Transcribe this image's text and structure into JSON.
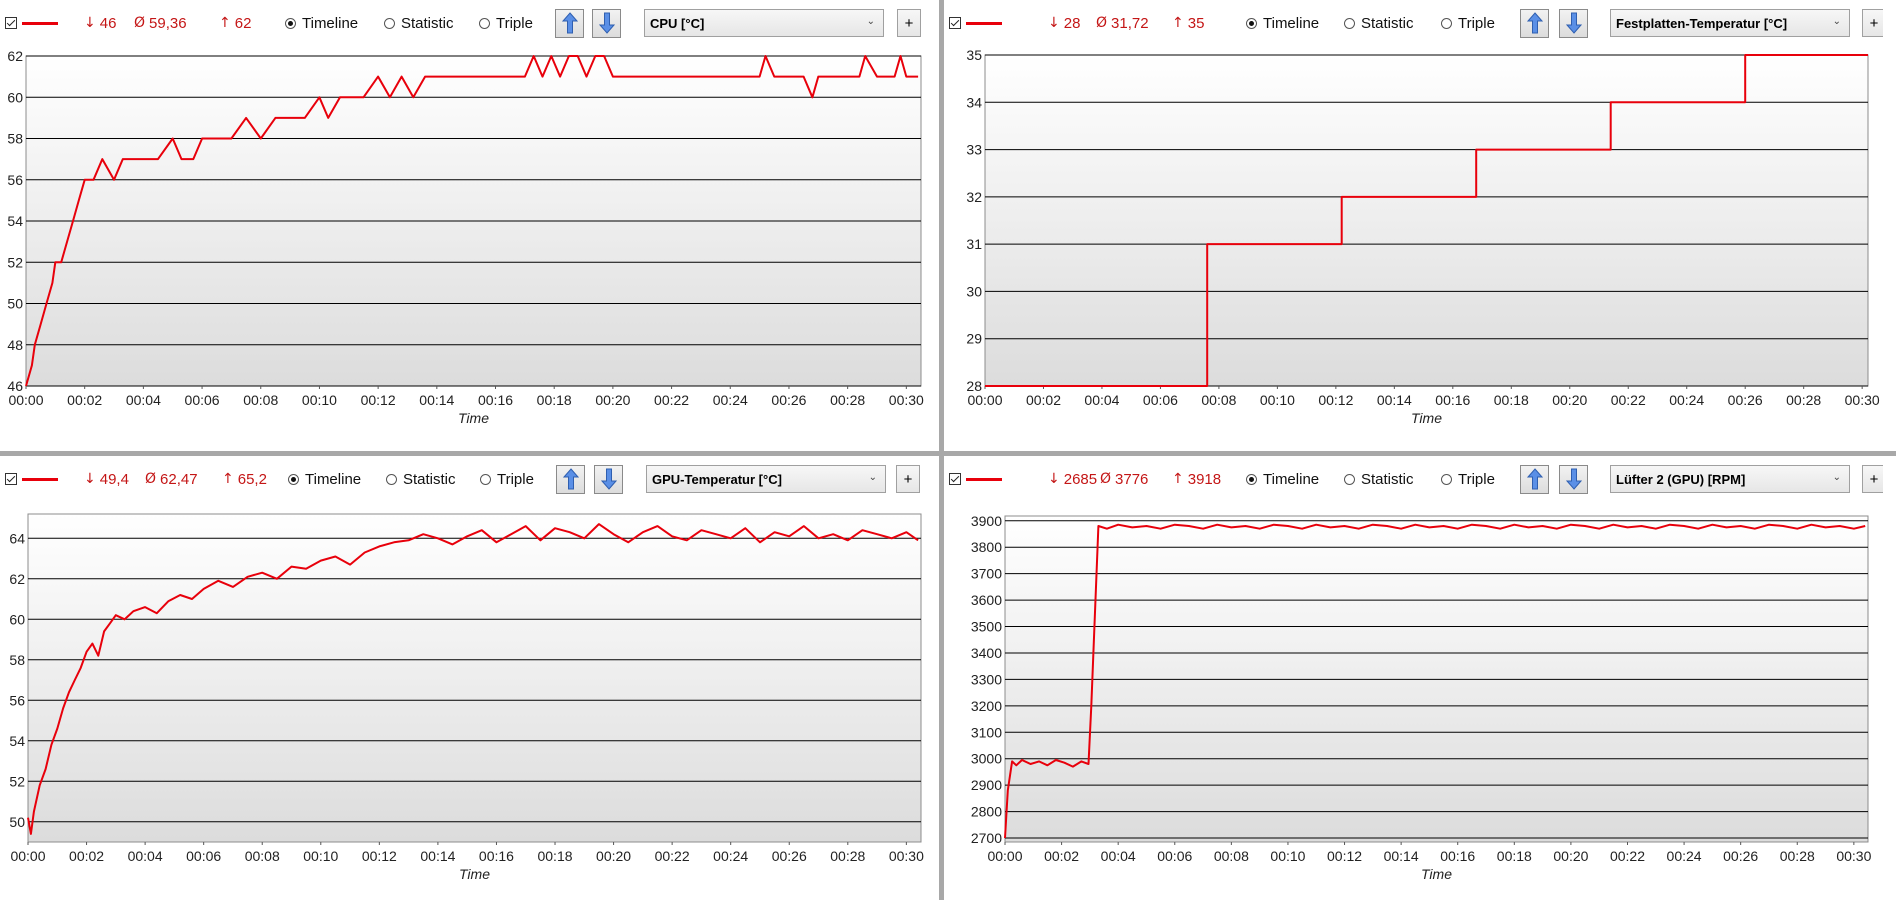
{
  "colors": {
    "series": "#e8000b",
    "stat_text": "#c41616",
    "grid": "#000000",
    "plot_top": "#ffffff",
    "plot_bottom": "#dcdcdc",
    "divider": "#a8a8a8"
  },
  "modes": [
    "Timeline",
    "Statistic",
    "Triple"
  ],
  "icons": {
    "checkbox": "checkbox-icon",
    "up": "arrow-up-icon",
    "down": "arrow-down-icon",
    "dropdown": "chevron-down-icon"
  },
  "panels": [
    {
      "stats": {
        "min": "46",
        "avg": "59,36",
        "max": "62"
      },
      "mode_selected": "Timeline",
      "sensor": "CPU [°C]",
      "add_label": "+",
      "chart_data": {
        "type": "line",
        "xlabel": "Time",
        "x_ticks": [
          "00:00",
          "00:02",
          "00:04",
          "00:06",
          "00:08",
          "00:10",
          "00:12",
          "00:14",
          "00:16",
          "00:18",
          "00:20",
          "00:22",
          "00:24",
          "00:26",
          "00:28",
          "00:30"
        ],
        "xlim": [
          0,
          30.5
        ],
        "ylim": [
          46,
          62
        ],
        "y_ticks": [
          "46",
          "48",
          "50",
          "52",
          "54",
          "56",
          "58",
          "60",
          "62"
        ],
        "grid": true,
        "series": [
          {
            "x": [
              0,
              0.2,
              0.3,
              0.5,
              0.7,
              0.9,
              1.0,
              1.2,
              1.4,
              1.6,
              1.8,
              2.0,
              2.3,
              2.6,
              3.0,
              3.3,
              3.6,
              4.0,
              4.5,
              5.0,
              5.3,
              5.7,
              6.0,
              6.5,
              7.0,
              7.5,
              8.0,
              8.5,
              9.0,
              9.5,
              10.0,
              10.3,
              10.7,
              11.0,
              11.5,
              12.0,
              12.4,
              12.8,
              13.2,
              13.6,
              14,
              15,
              16,
              17.0,
              17.3,
              17.6,
              17.9,
              18.2,
              18.5,
              18.8,
              19.1,
              19.4,
              19.7,
              20.0,
              20.5,
              21,
              22,
              23,
              24,
              25.0,
              25.2,
              25.5,
              26,
              26.5,
              26.8,
              27,
              28,
              28.4,
              28.6,
              29,
              29.6,
              29.8,
              30,
              30.4
            ],
            "y": [
              46,
              47,
              48,
              49,
              50,
              51,
              52,
              52,
              53,
              54,
              55,
              56,
              56,
              57,
              56,
              57,
              57,
              57,
              57,
              58,
              57,
              57,
              58,
              58,
              58,
              59,
              58,
              59,
              59,
              59,
              60,
              59,
              60,
              60,
              60,
              61,
              60,
              61,
              60,
              61,
              61,
              61,
              61,
              61,
              62,
              61,
              62,
              61,
              62,
              62,
              61,
              62,
              62,
              61,
              61,
              61,
              61,
              61,
              61,
              61,
              62,
              61,
              61,
              61,
              60,
              61,
              61,
              61,
              62,
              61,
              61,
              62,
              61,
              61
            ]
          }
        ]
      }
    },
    {
      "stats": {
        "min": "28",
        "avg": "31,72",
        "max": "35"
      },
      "mode_selected": "Timeline",
      "sensor": "Festplatten-Temperatur [°C]",
      "add_label": "+",
      "chart_data": {
        "type": "line",
        "xlabel": "Time",
        "x_ticks": [
          "00:00",
          "00:02",
          "00:04",
          "00:06",
          "00:08",
          "00:10",
          "00:12",
          "00:14",
          "00:16",
          "00:18",
          "00:20",
          "00:22",
          "00:24",
          "00:26",
          "00:28",
          "00:30"
        ],
        "xlim": [
          0,
          30.2
        ],
        "ylim": [
          28,
          35
        ],
        "y_ticks": [
          "28",
          "29",
          "30",
          "31",
          "32",
          "33",
          "34",
          "35"
        ],
        "grid": true,
        "series": [
          {
            "x": [
              0,
              7.6,
              7.6,
              12.2,
              12.2,
              16.8,
              16.8,
              21.4,
              21.4,
              26.0,
              26.0,
              30.2
            ],
            "y": [
              28,
              28,
              31,
              31,
              32,
              32,
              33,
              33,
              34,
              34,
              35,
              35
            ]
          }
        ]
      }
    },
    {
      "stats": {
        "min": "49,4",
        "avg": "62,47",
        "max": "65,2"
      },
      "mode_selected": "Timeline",
      "sensor": "GPU-Temperatur [°C]",
      "add_label": "+",
      "chart_data": {
        "type": "line",
        "xlabel": "Time",
        "x_ticks": [
          "00:00",
          "00:02",
          "00:04",
          "00:06",
          "00:08",
          "00:10",
          "00:12",
          "00:14",
          "00:16",
          "00:18",
          "00:20",
          "00:22",
          "00:24",
          "00:26",
          "00:28",
          "00:30"
        ],
        "xlim": [
          0,
          30.5
        ],
        "ylim": [
          49,
          65.2
        ],
        "y_ticks": [
          "50",
          "52",
          "54",
          "56",
          "58",
          "60",
          "62",
          "64"
        ],
        "grid": true,
        "series": [
          {
            "x": [
              0,
              0.1,
              0.2,
              0.4,
              0.6,
              0.8,
              1.0,
              1.2,
              1.4,
              1.6,
              1.8,
              2.0,
              2.2,
              2.4,
              2.6,
              2.8,
              3.0,
              3.3,
              3.6,
              4.0,
              4.4,
              4.8,
              5.2,
              5.6,
              6.0,
              6.5,
              7.0,
              7.5,
              8.0,
              8.5,
              9.0,
              9.5,
              10.0,
              10.5,
              11.0,
              11.5,
              12.0,
              12.5,
              13.0,
              13.5,
              14.0,
              14.5,
              15.0,
              15.5,
              16.0,
              16.5,
              17.0,
              17.5,
              18.0,
              18.5,
              19.0,
              19.5,
              20.0,
              20.5,
              21.0,
              21.5,
              22.0,
              22.5,
              23.0,
              23.5,
              24.0,
              24.5,
              25.0,
              25.5,
              26.0,
              26.5,
              27.0,
              27.5,
              28.0,
              28.5,
              29.0,
              29.5,
              30.0,
              30.4
            ],
            "y": [
              50.2,
              49.4,
              50.5,
              51.8,
              52.6,
              53.8,
              54.6,
              55.6,
              56.4,
              57.0,
              57.6,
              58.4,
              58.8,
              58.2,
              59.4,
              59.8,
              60.2,
              60.0,
              60.4,
              60.6,
              60.3,
              60.9,
              61.2,
              61.0,
              61.5,
              61.9,
              61.6,
              62.1,
              62.3,
              62.0,
              62.6,
              62.5,
              62.9,
              63.1,
              62.7,
              63.3,
              63.6,
              63.8,
              63.9,
              64.2,
              64.0,
              63.7,
              64.1,
              64.4,
              63.8,
              64.2,
              64.6,
              63.9,
              64.5,
              64.3,
              64.0,
              64.7,
              64.2,
              63.8,
              64.3,
              64.6,
              64.1,
              63.9,
              64.4,
              64.2,
              64.0,
              64.5,
              63.8,
              64.3,
              64.1,
              64.6,
              64.0,
              64.2,
              63.9,
              64.4,
              64.2,
              64.0,
              64.3,
              63.9
            ]
          }
        ]
      }
    },
    {
      "stats": {
        "min": "2685",
        "avg": "3776",
        "max": "3918"
      },
      "mode_selected": "Timeline",
      "sensor": "Lüfter 2 (GPU) [RPM]",
      "add_label": "+",
      "chart_data": {
        "type": "line",
        "xlabel": "Time",
        "x_ticks": [
          "00:00",
          "00:02",
          "00:04",
          "00:06",
          "00:08",
          "00:10",
          "00:12",
          "00:14",
          "00:16",
          "00:18",
          "00:20",
          "00:22",
          "00:24",
          "00:26",
          "00:28",
          "00:30"
        ],
        "xlim": [
          0,
          30.5
        ],
        "ylim": [
          2685,
          3918
        ],
        "y_ticks": [
          "2700",
          "2800",
          "2900",
          "3000",
          "3100",
          "3200",
          "3300",
          "3400",
          "3500",
          "3600",
          "3700",
          "3800",
          "3900"
        ],
        "grid": true,
        "series": [
          {
            "x": [
              0,
              0.1,
              0.25,
              0.4,
              0.6,
              0.9,
              1.2,
              1.5,
              1.8,
              2.1,
              2.4,
              2.7,
              2.95,
              3.05,
              3.3,
              3.6,
              4.0,
              4.5,
              5.0,
              5.5,
              6.0,
              6.5,
              7.0,
              7.5,
              8.0,
              8.5,
              9.0,
              9.5,
              10.0,
              10.5,
              11.0,
              11.5,
              12.0,
              12.5,
              13.0,
              13.5,
              14.0,
              14.5,
              15.0,
              15.5,
              16.0,
              16.5,
              17.0,
              17.5,
              18.0,
              18.5,
              19.0,
              19.5,
              20.0,
              20.5,
              21.0,
              21.5,
              22.0,
              22.5,
              23.0,
              23.5,
              24.0,
              24.5,
              25.0,
              25.5,
              26.0,
              26.5,
              27.0,
              27.5,
              28.0,
              28.5,
              29.0,
              29.5,
              30.0,
              30.4
            ],
            "y": [
              2700,
              2880,
              2990,
              2975,
              2995,
              2980,
              2990,
              2975,
              2995,
              2985,
              2970,
              2990,
              2980,
              3200,
              3880,
              3870,
              3885,
              3875,
              3880,
              3870,
              3885,
              3880,
              3870,
              3885,
              3875,
              3880,
              3870,
              3885,
              3880,
              3870,
              3885,
              3875,
              3880,
              3870,
              3885,
              3880,
              3870,
              3885,
              3875,
              3880,
              3870,
              3885,
              3880,
              3870,
              3885,
              3875,
              3880,
              3870,
              3885,
              3880,
              3870,
              3885,
              3875,
              3880,
              3870,
              3885,
              3880,
              3870,
              3885,
              3875,
              3880,
              3870,
              3885,
              3880,
              3870,
              3885,
              3875,
              3880,
              3870,
              3880
            ]
          }
        ]
      }
    }
  ]
}
